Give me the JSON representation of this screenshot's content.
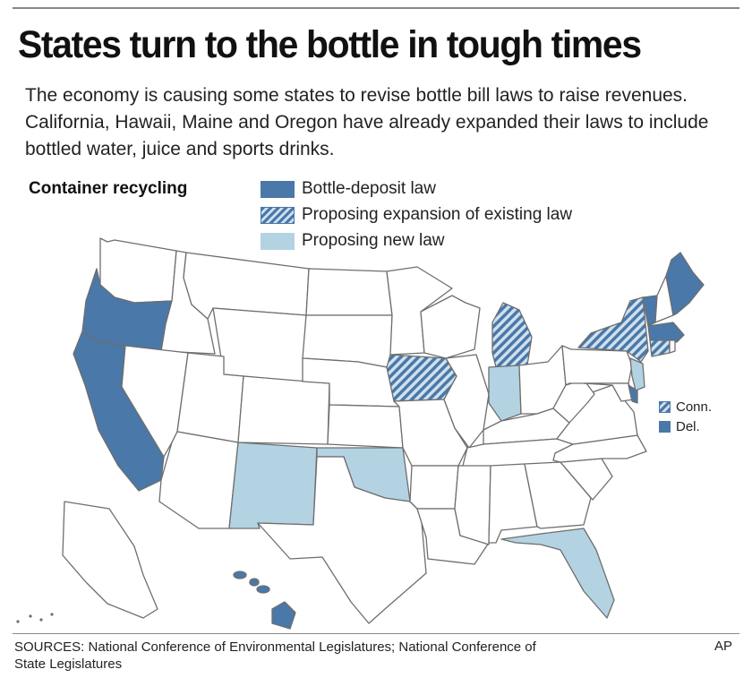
{
  "headline": "States turn to the bottle in tough times",
  "intro": "The economy is causing some states to revise bottle bill laws to raise revenues. California, Hawaii, Maine and Oregon have already expanded their laws to include bottled water, juice and sports drinks.",
  "legend": {
    "title": "Container recycling",
    "items": [
      {
        "label": "Bottle-deposit law",
        "category": "deposit"
      },
      {
        "label": "Proposing expansion of existing law",
        "category": "expansion"
      },
      {
        "label": "Proposing new law",
        "category": "new"
      }
    ]
  },
  "colors": {
    "deposit": "#4a78a8",
    "expansion_stripe": "#4a78a8",
    "expansion_bg": "#cfe0ee",
    "new": "#b3d3e2",
    "none": "#ffffff",
    "border": "#6e6e6e"
  },
  "map_categories": {
    "deposit": [
      "California",
      "Oregon",
      "Hawaii",
      "Maine",
      "Vermont",
      "Massachusetts",
      "Delaware"
    ],
    "expansion": [
      "New York",
      "Michigan",
      "Iowa",
      "Connecticut"
    ],
    "new": [
      "New Jersey",
      "Indiana",
      "New Mexico",
      "Oklahoma",
      "Florida"
    ]
  },
  "map_labels": [
    {
      "label": "Conn.",
      "category": "expansion"
    },
    {
      "label": "Del.",
      "category": "deposit"
    }
  ],
  "footer": {
    "sources": "SOURCES: National Conference of Environmental Legislatures; National Conference of State Legislatures",
    "credit": "AP"
  }
}
